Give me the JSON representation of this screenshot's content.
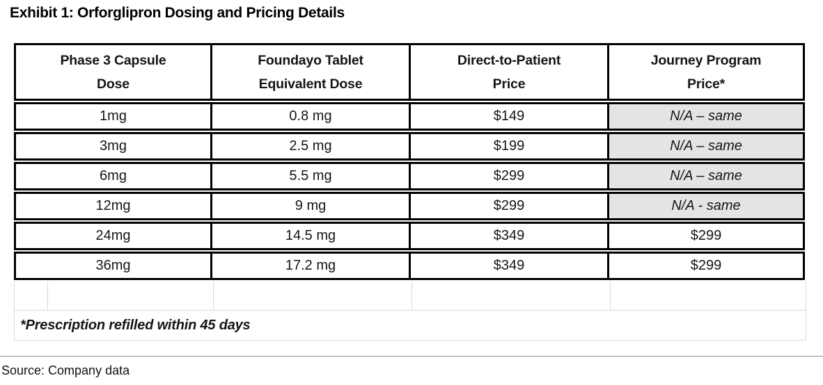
{
  "page": {
    "title": "Exhibit 1: Orforglipron Dosing and Pricing Details",
    "source": "Source: Company data"
  },
  "table": {
    "headers": [
      {
        "line1": "Phase 3 Capsule",
        "line2": "Dose"
      },
      {
        "line1": "Foundayo Tablet",
        "line2": "Equivalent Dose"
      },
      {
        "line1": "Direct-to-Patient",
        "line2": "Price"
      },
      {
        "line1": "Journey Program",
        "line2": "Price*"
      }
    ],
    "rows": [
      {
        "capsule_dose": "1mg",
        "tablet_equiv_dose": "0.8 mg",
        "dtp_price": "$149",
        "journey_price": "N/A – same"
      },
      {
        "capsule_dose": "3mg",
        "tablet_equiv_dose": "2.5 mg",
        "dtp_price": "$199",
        "journey_price": "N/A – same"
      },
      {
        "capsule_dose": "6mg",
        "tablet_equiv_dose": "5.5 mg",
        "dtp_price": "$299",
        "journey_price": "N/A – same"
      },
      {
        "capsule_dose": "12mg",
        "tablet_equiv_dose": "9 mg",
        "dtp_price": "$299",
        "journey_price": "N/A - same"
      },
      {
        "capsule_dose": "24mg",
        "tablet_equiv_dose": "14.5 mg",
        "dtp_price": "$349",
        "journey_price": "$299"
      },
      {
        "capsule_dose": "36mg",
        "tablet_equiv_dose": "17.2 mg",
        "dtp_price": "$349",
        "journey_price": "$299"
      }
    ],
    "footnote": "*Prescription refilled within 45 days"
  },
  "colors": {
    "na_cell_background": "#e4e4e4",
    "table_border": "#000000",
    "gridline": "#d9d9d9",
    "rule": "#8a8a8a",
    "text": "#151515"
  }
}
